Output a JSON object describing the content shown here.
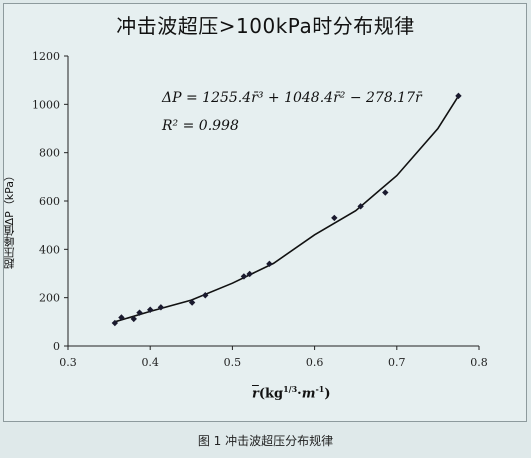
{
  "chart_data": {
    "type": "scatter",
    "title": "冲击波超压>100kPa时分布规律",
    "ylabel": "超压峰值ΔP（kPa）",
    "xlabel": "r(kg1/3·m-1)",
    "xlim": [
      0.3,
      0.8
    ],
    "ylim": [
      0,
      1200
    ],
    "x_ticks": [
      "0.3",
      "0.4",
      "0.5",
      "0.6",
      "0.7",
      "0.8"
    ],
    "y_ticks": [
      "0",
      "200",
      "400",
      "600",
      "800",
      "1000",
      "1200"
    ],
    "equation": "ΔP = 1255.4r̄³ + 1048.4r̄² − 278.17r̄",
    "r_squared": "R² = 0.998",
    "points": [
      {
        "x": 0.357,
        "y": 95
      },
      {
        "x": 0.365,
        "y": 118
      },
      {
        "x": 0.38,
        "y": 112
      },
      {
        "x": 0.387,
        "y": 138
      },
      {
        "x": 0.4,
        "y": 150
      },
      {
        "x": 0.413,
        "y": 160
      },
      {
        "x": 0.451,
        "y": 180
      },
      {
        "x": 0.467,
        "y": 210
      },
      {
        "x": 0.514,
        "y": 288
      },
      {
        "x": 0.521,
        "y": 298
      },
      {
        "x": 0.545,
        "y": 340
      },
      {
        "x": 0.624,
        "y": 530
      },
      {
        "x": 0.656,
        "y": 578
      },
      {
        "x": 0.686,
        "y": 635
      },
      {
        "x": 0.775,
        "y": 1035
      }
    ],
    "trendline": [
      {
        "x": 0.357,
        "y": 100
      },
      {
        "x": 0.4,
        "y": 143
      },
      {
        "x": 0.45,
        "y": 190
      },
      {
        "x": 0.5,
        "y": 260
      },
      {
        "x": 0.55,
        "y": 342
      },
      {
        "x": 0.6,
        "y": 460
      },
      {
        "x": 0.65,
        "y": 560
      },
      {
        "x": 0.7,
        "y": 705
      },
      {
        "x": 0.75,
        "y": 900
      },
      {
        "x": 0.775,
        "y": 1035
      }
    ]
  },
  "caption": "图 1  冲击波超压分布规律"
}
